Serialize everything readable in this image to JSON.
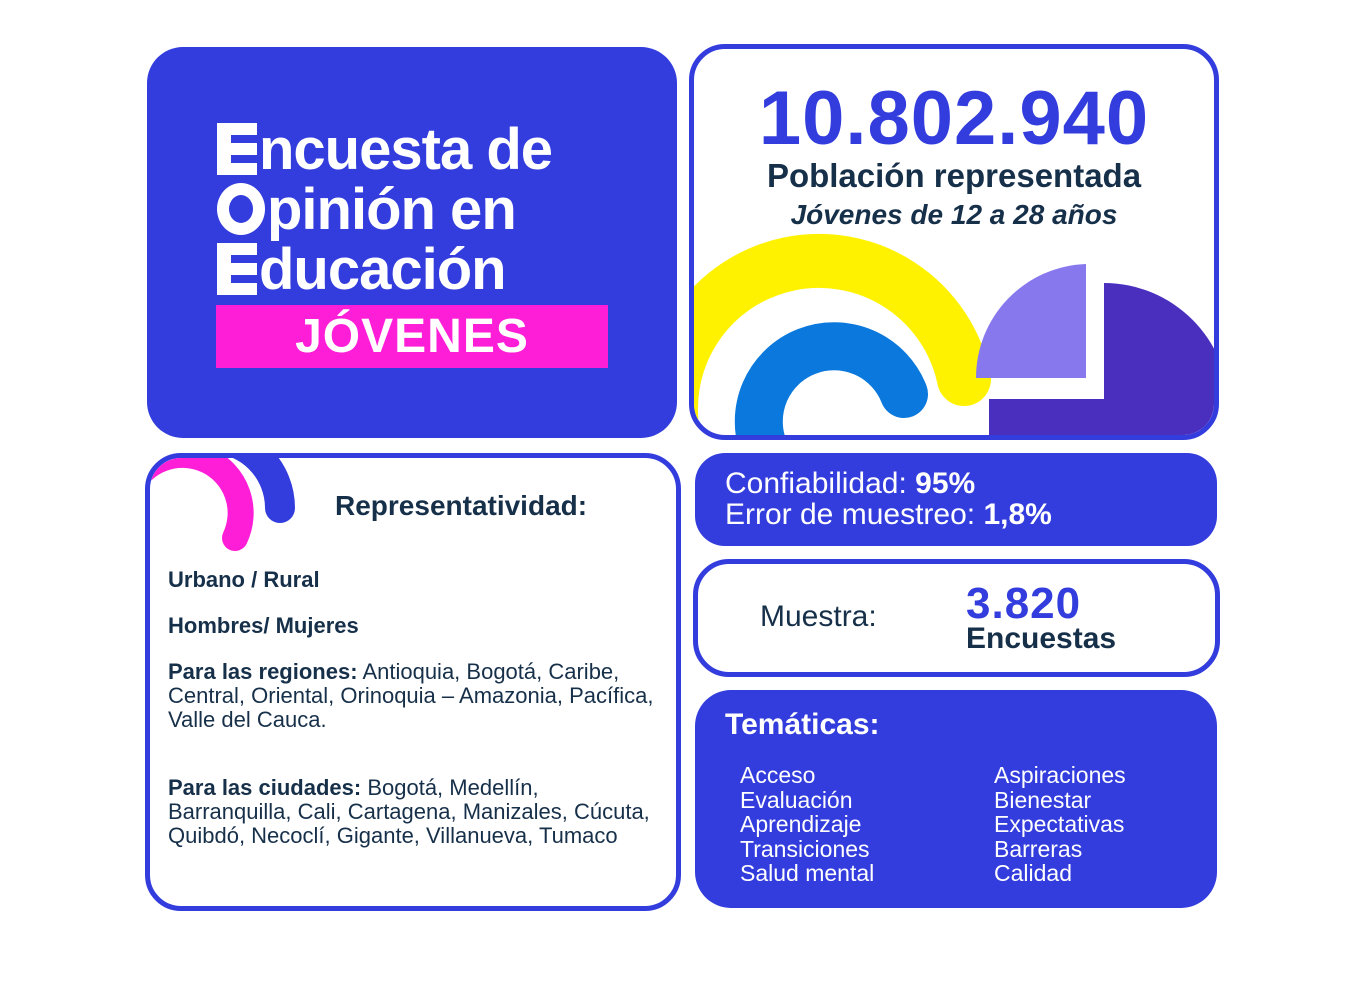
{
  "title_card": {
    "line1_rest": "ncuesta de",
    "line2_rest": "pinión en",
    "line3_rest": "ducación",
    "badge": "JÓVENES",
    "letter_icons": [
      "E",
      "O",
      "E"
    ]
  },
  "population": {
    "number": "10.802.940",
    "label": "Población representada",
    "age_range": "Jóvenes de 12 a 28 años"
  },
  "representatividad": {
    "title": "Representatividad:",
    "items": [
      {
        "text": "Urbano / Rural"
      },
      {
        "text": "Hombres/ Mujeres"
      },
      {
        "label": "Para las regiones:",
        "text": " Antioquia, Bogotá, Caribe, Central, Oriental, Orinoquia – Amazonia, Pacífica, Valle del Cauca."
      },
      {
        "label": "Para las ciudades:",
        "text": " Bogotá, Medellín, Barranquilla, Cali, Cartagena, Manizales, Cúcuta, Quibdó, Necoclí, Gigante, Villanueva, Tumaco"
      }
    ]
  },
  "confiabilidad": {
    "label": "Confiabilidad:",
    "value": "95%",
    "error_label": "Error de muestreo:",
    "error_value": "1,8%"
  },
  "muestra": {
    "label": "Muestra:",
    "number": "3.820",
    "unit": "Encuestas"
  },
  "tematicas": {
    "title": "Temáticas:",
    "left": [
      "Acceso",
      "Evaluación",
      "Aprendizaje",
      "Transiciones",
      "Salud mental"
    ],
    "right": [
      "Aspiraciones",
      "Bienestar",
      "Expectativas",
      "Barreras",
      "Calidad"
    ]
  },
  "colors": {
    "primary_blue": "#333ddd",
    "magenta": "#ff1ed7",
    "yellow": "#fff200",
    "sky_blue": "#0a78dc",
    "lavender": "#8878ee",
    "deep_purple": "#4a2fbf",
    "dark_text": "#17304a"
  }
}
